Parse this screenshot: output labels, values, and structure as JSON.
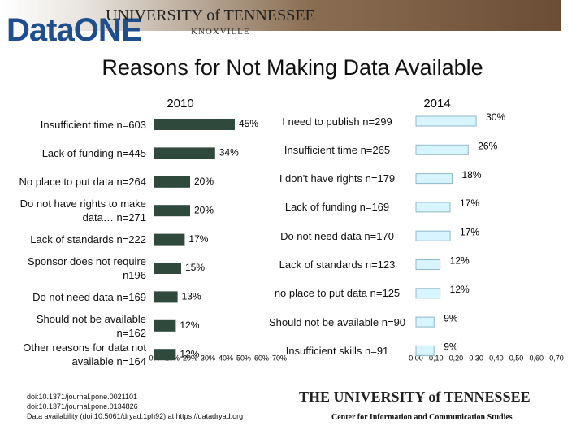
{
  "header": {
    "logo": "DataONE",
    "banner": "UNIVERSITY of TENNESSEE",
    "banner_sub": "KNOXVILLE"
  },
  "title": "Reasons for Not Making Data Available",
  "chart_data": [
    {
      "type": "bar",
      "orientation": "horizontal",
      "title": "2010",
      "categories": [
        "Insufficient time n=603",
        "Lack of funding n=445",
        "No place to put data n=264",
        "Do not have rights to make data… n=271",
        "Lack of standards n=222",
        "Sponsor does not require n196",
        "Do not need data n=169",
        "Should not be available n=162",
        "Other reasons for data not available n=164"
      ],
      "values": [
        45,
        34,
        20,
        20,
        17,
        15,
        13,
        12,
        12
      ],
      "value_labels": [
        "45%",
        "34%",
        "20%",
        "20%",
        "17%",
        "15%",
        "13%",
        "12%",
        "12%"
      ],
      "color": "#2f4a3c",
      "xlim": [
        0,
        70
      ],
      "xticks": [
        {
          "value": 0,
          "label": "0%"
        },
        {
          "value": 10,
          "label": "10%"
        },
        {
          "value": 20,
          "label": "20%"
        },
        {
          "value": 30,
          "label": "30%"
        },
        {
          "value": 40,
          "label": "40%"
        },
        {
          "value": 50,
          "label": "50%"
        },
        {
          "value": 60,
          "label": "60%"
        },
        {
          "value": 70,
          "label": "70%"
        }
      ]
    },
    {
      "type": "bar",
      "orientation": "horizontal",
      "title": "2014",
      "categories": [
        "I need to publish n=299",
        "Insufficient time n=265",
        "I don't have rights n=179",
        "Lack of funding n=169",
        "Do not need data n=170",
        "Lack of standards n=123",
        "no place to put data n=125",
        "Should not be available n=90",
        "Insufficient skills n=91"
      ],
      "values": [
        0.3,
        0.26,
        0.18,
        0.17,
        0.17,
        0.12,
        0.12,
        0.09,
        0.09
      ],
      "value_labels": [
        "30%",
        "26%",
        "18%",
        "17%",
        "17%",
        "12%",
        "12%",
        "9%",
        "9%"
      ],
      "color": "#d8f4ff",
      "xlim": [
        0,
        0.7
      ],
      "xticks": [
        {
          "value": 0,
          "label": "0,00"
        },
        {
          "value": 0.1,
          "label": "0,10"
        },
        {
          "value": 0.2,
          "label": "0,20"
        },
        {
          "value": 0.3,
          "label": "0,30"
        },
        {
          "value": 0.4,
          "label": "0,40"
        },
        {
          "value": 0.5,
          "label": "0,50"
        },
        {
          "value": 0.6,
          "label": "0,60"
        },
        {
          "value": 0.7,
          "label": "0,70"
        }
      ]
    }
  ],
  "footer": {
    "refs": [
      "doi:10.1371/journal.pone.0021101",
      "doi:10.1371/journal.pone.0134826",
      "Data availability (doi:10.5061/dryad.1ph92) at https://datadryad.org"
    ],
    "logo": "THE UNIVERSITY of TENNESSEE",
    "center": "Center for Information and Communication Studies"
  }
}
